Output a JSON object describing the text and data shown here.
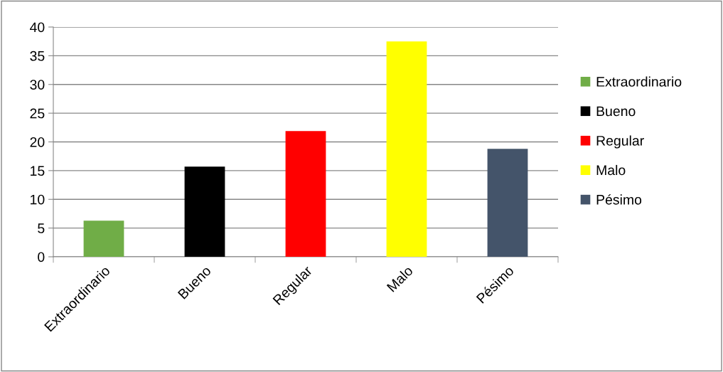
{
  "chart_data": {
    "type": "bar",
    "categories": [
      "Extraordinario",
      "Bueno",
      "Regular",
      "Malo",
      "Pésimo"
    ],
    "series": [
      {
        "name": "Extraordinario",
        "color": "#70ad47",
        "values": [
          6.3,
          null,
          null,
          null,
          null
        ]
      },
      {
        "name": "Bueno",
        "color": "#000000",
        "values": [
          null,
          15.7,
          null,
          null,
          null
        ]
      },
      {
        "name": "Regular",
        "color": "#ff0000",
        "values": [
          null,
          null,
          21.9,
          null,
          null
        ]
      },
      {
        "name": "Malo",
        "color": "#ffff00",
        "values": [
          null,
          null,
          null,
          37.5,
          null
        ]
      },
      {
        "name": "Pésimo",
        "color": "#44546a",
        "values": [
          null,
          null,
          null,
          null,
          18.8
        ]
      }
    ],
    "ylim": [
      0,
      40
    ],
    "yticks": [
      0,
      5,
      10,
      15,
      20,
      25,
      30,
      35,
      40
    ],
    "grid": "y",
    "legend": "right"
  }
}
